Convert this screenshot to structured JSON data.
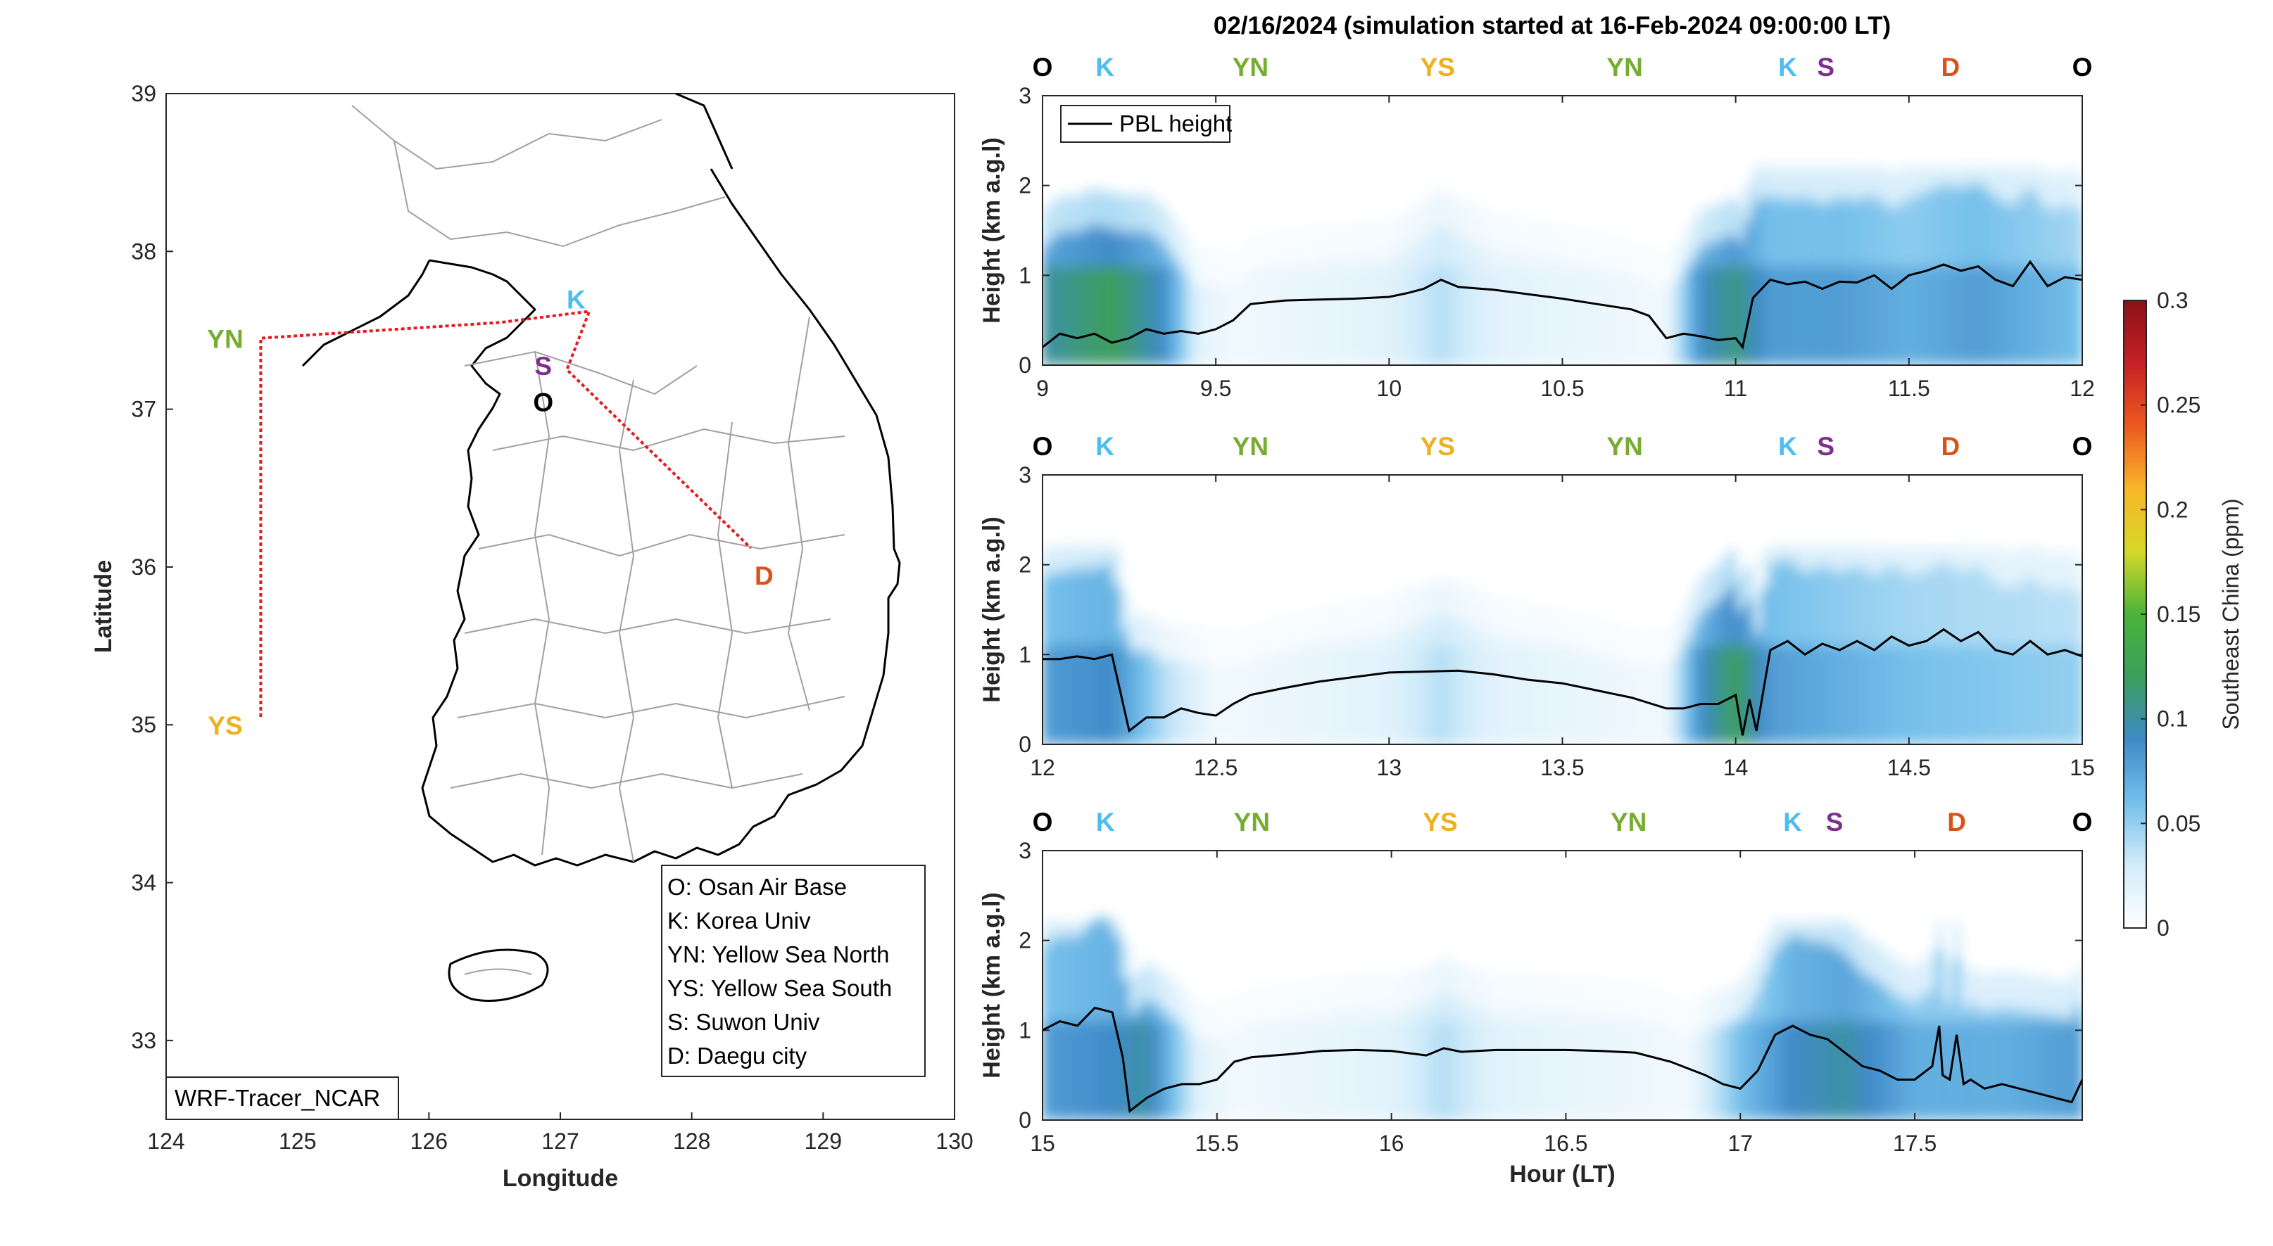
{
  "chart_data": [
    {
      "type": "map",
      "xlabel": "Longitude",
      "ylabel": "Latitude",
      "xlim": [
        124,
        130
      ],
      "ylim": [
        32.5,
        39
      ],
      "xticks": [
        "124",
        "125",
        "126",
        "127",
        "128",
        "129",
        "130"
      ],
      "yticks": [
        "33",
        "34",
        "35",
        "36",
        "37",
        "38",
        "39"
      ],
      "tag": "WRF-Tracer_NCAR",
      "track": [
        {
          "lon": 124.72,
          "lat": 35.05
        },
        {
          "lon": 124.72,
          "lat": 37.45
        },
        {
          "lon": 126.55,
          "lat": 37.55
        },
        {
          "lon": 127.22,
          "lat": 37.62
        },
        {
          "lon": 127.05,
          "lat": 37.25
        },
        {
          "lon": 128.45,
          "lat": 36.12
        }
      ],
      "sites": [
        {
          "code": "YN",
          "lon": 124.45,
          "lat": 37.45,
          "color": "#77ac30"
        },
        {
          "code": "YS",
          "lon": 124.45,
          "lat": 35.0,
          "color": "#edb120"
        },
        {
          "code": "K",
          "lon": 127.12,
          "lat": 37.7,
          "color": "#4dbeee"
        },
        {
          "code": "S",
          "lon": 126.87,
          "lat": 37.28,
          "color": "#7e2f8e"
        },
        {
          "code": "O",
          "lon": 126.87,
          "lat": 37.05,
          "color": "#000000"
        },
        {
          "code": "D",
          "lon": 128.55,
          "lat": 35.95,
          "color": "#d95319"
        }
      ],
      "legend": [
        "O: Osan Air Base",
        "K: Korea Univ",
        "YN: Yellow Sea North",
        "YS: Yellow Sea South",
        "S: Suwon Univ",
        "D: Daegu city"
      ]
    },
    {
      "type": "heatmap",
      "title": "02/16/2024 (simulation started at 16-Feb-2024 09:00:00 LT)",
      "ylabel": "Height (km a.g.l)",
      "ylim": [
        0,
        3
      ],
      "colorbar": {
        "label": "Southeast China (ppm)",
        "range": [
          0,
          0.3
        ],
        "ticks": [
          "0",
          "0.05",
          "0.1",
          "0.15",
          "0.2",
          "0.25",
          "0.3"
        ]
      },
      "legend": [
        "PBL height"
      ],
      "panels": [
        {
          "xlim": [
            9,
            12
          ],
          "xticks": [
            "9",
            "9.5",
            "10",
            "10.5",
            "11",
            "11.5",
            "12"
          ],
          "segments": [
            {
              "code": "O",
              "x": 9.0
            },
            {
              "code": "K",
              "x": 9.18
            },
            {
              "code": "YN",
              "x": 9.6
            },
            {
              "code": "YS",
              "x": 10.14
            },
            {
              "code": "YN",
              "x": 10.68
            },
            {
              "code": "K",
              "x": 11.15
            },
            {
              "code": "S",
              "x": 11.26
            },
            {
              "code": "D",
              "x": 11.62
            },
            {
              "code": "O",
              "x": 12.0
            }
          ],
          "pbl_height": {
            "x": [
              9.0,
              9.05,
              9.1,
              9.15,
              9.2,
              9.25,
              9.3,
              9.35,
              9.4,
              9.45,
              9.5,
              9.55,
              9.6,
              9.7,
              9.8,
              9.9,
              10.0,
              10.05,
              10.1,
              10.15,
              10.2,
              10.3,
              10.4,
              10.5,
              10.6,
              10.7,
              10.75,
              10.8,
              10.85,
              10.9,
              10.95,
              11.0,
              11.02,
              11.05,
              11.1,
              11.15,
              11.2,
              11.25,
              11.3,
              11.35,
              11.4,
              11.45,
              11.5,
              11.55,
              11.6,
              11.65,
              11.7,
              11.75,
              11.8,
              11.85,
              11.9,
              11.95,
              12.0
            ],
            "y": [
              0.2,
              0.35,
              0.3,
              0.35,
              0.25,
              0.3,
              0.4,
              0.35,
              0.38,
              0.35,
              0.4,
              0.5,
              0.68,
              0.72,
              0.73,
              0.74,
              0.76,
              0.8,
              0.85,
              0.95,
              0.87,
              0.84,
              0.79,
              0.74,
              0.68,
              0.62,
              0.55,
              0.3,
              0.35,
              0.32,
              0.28,
              0.3,
              0.2,
              0.75,
              0.95,
              0.9,
              0.93,
              0.85,
              0.93,
              0.92,
              1.0,
              0.85,
              1.0,
              1.05,
              1.12,
              1.05,
              1.1,
              0.95,
              0.88,
              1.15,
              0.88,
              0.98,
              0.95
            ]
          },
          "tracer": [
            {
              "x": 9.0,
              "ppm": 0.1
            },
            {
              "x": 9.2,
              "ppm": 0.12
            },
            {
              "x": 9.35,
              "ppm": 0.09
            },
            {
              "x": 9.45,
              "ppm": 0.02
            },
            {
              "x": 9.55,
              "ppm": 0.01
            },
            {
              "x": 10.0,
              "ppm": 0.02
            },
            {
              "x": 10.15,
              "ppm": 0.04
            },
            {
              "x": 10.3,
              "ppm": 0.02
            },
            {
              "x": 10.8,
              "ppm": 0.01
            },
            {
              "x": 10.9,
              "ppm": 0.09
            },
            {
              "x": 11.0,
              "ppm": 0.11
            },
            {
              "x": 11.1,
              "ppm": 0.08
            },
            {
              "x": 11.3,
              "ppm": 0.08
            },
            {
              "x": 11.5,
              "ppm": 0.07
            },
            {
              "x": 11.7,
              "ppm": 0.08
            },
            {
              "x": 12.0,
              "ppm": 0.06
            }
          ]
        },
        {
          "xlim": [
            12,
            15
          ],
          "xticks": [
            "12",
            "12.5",
            "13",
            "13.5",
            "14",
            "14.5",
            "15"
          ],
          "segments": [
            {
              "code": "O",
              "x": 12.0
            },
            {
              "code": "K",
              "x": 12.18
            },
            {
              "code": "YN",
              "x": 12.6
            },
            {
              "code": "YS",
              "x": 13.14
            },
            {
              "code": "YN",
              "x": 13.68
            },
            {
              "code": "K",
              "x": 14.15
            },
            {
              "code": "S",
              "x": 14.26
            },
            {
              "code": "D",
              "x": 14.62
            },
            {
              "code": "O",
              "x": 15.0
            }
          ],
          "pbl_height": {
            "x": [
              12.0,
              12.05,
              12.1,
              12.15,
              12.2,
              12.25,
              12.3,
              12.35,
              12.4,
              12.45,
              12.5,
              12.55,
              12.6,
              12.7,
              12.8,
              12.9,
              13.0,
              13.1,
              13.2,
              13.3,
              13.4,
              13.5,
              13.6,
              13.7,
              13.8,
              13.85,
              13.9,
              13.95,
              14.0,
              14.02,
              14.04,
              14.06,
              14.1,
              14.15,
              14.2,
              14.25,
              14.3,
              14.35,
              14.4,
              14.45,
              14.5,
              14.55,
              14.6,
              14.65,
              14.7,
              14.75,
              14.8,
              14.85,
              14.9,
              14.95,
              15.0
            ],
            "y": [
              0.95,
              0.95,
              0.98,
              0.95,
              1.0,
              0.15,
              0.3,
              0.3,
              0.4,
              0.35,
              0.32,
              0.45,
              0.55,
              0.63,
              0.7,
              0.75,
              0.8,
              0.81,
              0.82,
              0.78,
              0.72,
              0.68,
              0.6,
              0.52,
              0.4,
              0.4,
              0.45,
              0.45,
              0.55,
              0.1,
              0.5,
              0.15,
              1.05,
              1.15,
              1.0,
              1.12,
              1.05,
              1.15,
              1.05,
              1.2,
              1.1,
              1.15,
              1.28,
              1.15,
              1.25,
              1.05,
              1.0,
              1.15,
              1.0,
              1.05,
              0.98
            ]
          },
          "tracer": [
            {
              "x": 12.0,
              "ppm": 0.08
            },
            {
              "x": 12.2,
              "ppm": 0.09
            },
            {
              "x": 12.35,
              "ppm": 0.04
            },
            {
              "x": 12.5,
              "ppm": 0.01
            },
            {
              "x": 13.0,
              "ppm": 0.02
            },
            {
              "x": 13.15,
              "ppm": 0.04
            },
            {
              "x": 13.3,
              "ppm": 0.02
            },
            {
              "x": 13.8,
              "ppm": 0.01
            },
            {
              "x": 13.9,
              "ppm": 0.09
            },
            {
              "x": 14.0,
              "ppm": 0.12
            },
            {
              "x": 14.1,
              "ppm": 0.08
            },
            {
              "x": 14.5,
              "ppm": 0.06
            },
            {
              "x": 15.0,
              "ppm": 0.05
            }
          ]
        },
        {
          "xlim": [
            15,
            17.98
          ],
          "xticks": [
            "15",
            "15.5",
            "16",
            "16.5",
            "17",
            "17.5"
          ],
          "xlabel": "Hour (LT)",
          "segments": [
            {
              "code": "O",
              "x": 15.0
            },
            {
              "code": "K",
              "x": 15.18
            },
            {
              "code": "YN",
              "x": 15.6
            },
            {
              "code": "YS",
              "x": 16.14
            },
            {
              "code": "YN",
              "x": 16.68
            },
            {
              "code": "K",
              "x": 17.15
            },
            {
              "code": "S",
              "x": 17.27
            },
            {
              "code": "D",
              "x": 17.62
            },
            {
              "code": "O",
              "x": 17.98
            }
          ],
          "pbl_height": {
            "x": [
              15.0,
              15.05,
              15.1,
              15.15,
              15.2,
              15.23,
              15.25,
              15.3,
              15.35,
              15.4,
              15.45,
              15.5,
              15.55,
              15.6,
              15.7,
              15.8,
              15.9,
              16.0,
              16.1,
              16.15,
              16.2,
              16.3,
              16.4,
              16.5,
              16.6,
              16.7,
              16.8,
              16.9,
              16.95,
              17.0,
              17.05,
              17.1,
              17.15,
              17.2,
              17.25,
              17.3,
              17.35,
              17.4,
              17.45,
              17.5,
              17.55,
              17.57,
              17.58,
              17.6,
              17.62,
              17.64,
              17.66,
              17.7,
              17.75,
              17.8,
              17.85,
              17.9,
              17.95,
              17.98
            ],
            "y": [
              1.0,
              1.1,
              1.05,
              1.25,
              1.2,
              0.7,
              0.1,
              0.25,
              0.35,
              0.4,
              0.4,
              0.45,
              0.65,
              0.7,
              0.73,
              0.77,
              0.78,
              0.77,
              0.72,
              0.8,
              0.76,
              0.78,
              0.78,
              0.78,
              0.77,
              0.75,
              0.65,
              0.5,
              0.4,
              0.35,
              0.55,
              0.95,
              1.05,
              0.95,
              0.9,
              0.75,
              0.6,
              0.55,
              0.45,
              0.45,
              0.6,
              1.05,
              0.5,
              0.45,
              0.95,
              0.4,
              0.45,
              0.35,
              0.4,
              0.35,
              0.3,
              0.25,
              0.2,
              0.45
            ]
          },
          "tracer": [
            {
              "x": 15.0,
              "ppm": 0.08
            },
            {
              "x": 15.2,
              "ppm": 0.09
            },
            {
              "x": 15.3,
              "ppm": 0.1
            },
            {
              "x": 15.45,
              "ppm": 0.02
            },
            {
              "x": 15.55,
              "ppm": 0.01
            },
            {
              "x": 16.0,
              "ppm": 0.02
            },
            {
              "x": 16.15,
              "ppm": 0.04
            },
            {
              "x": 16.3,
              "ppm": 0.02
            },
            {
              "x": 16.85,
              "ppm": 0.01
            },
            {
              "x": 17.0,
              "ppm": 0.06
            },
            {
              "x": 17.15,
              "ppm": 0.09
            },
            {
              "x": 17.3,
              "ppm": 0.1
            },
            {
              "x": 17.5,
              "ppm": 0.07
            },
            {
              "x": 17.75,
              "ppm": 0.07
            },
            {
              "x": 17.98,
              "ppm": 0.08
            }
          ]
        }
      ]
    }
  ],
  "colors": {
    "axis": "#262626",
    "pbl_line": "#000000",
    "track": "#e8191f",
    "colormap": [
      "#ffffff",
      "#d3ecfa",
      "#74c0eb",
      "#3f8ac9",
      "#3c9e5a",
      "#4ab33a",
      "#d6d828",
      "#fab52b",
      "#ec5a1e",
      "#c42126",
      "#8b1218"
    ]
  }
}
